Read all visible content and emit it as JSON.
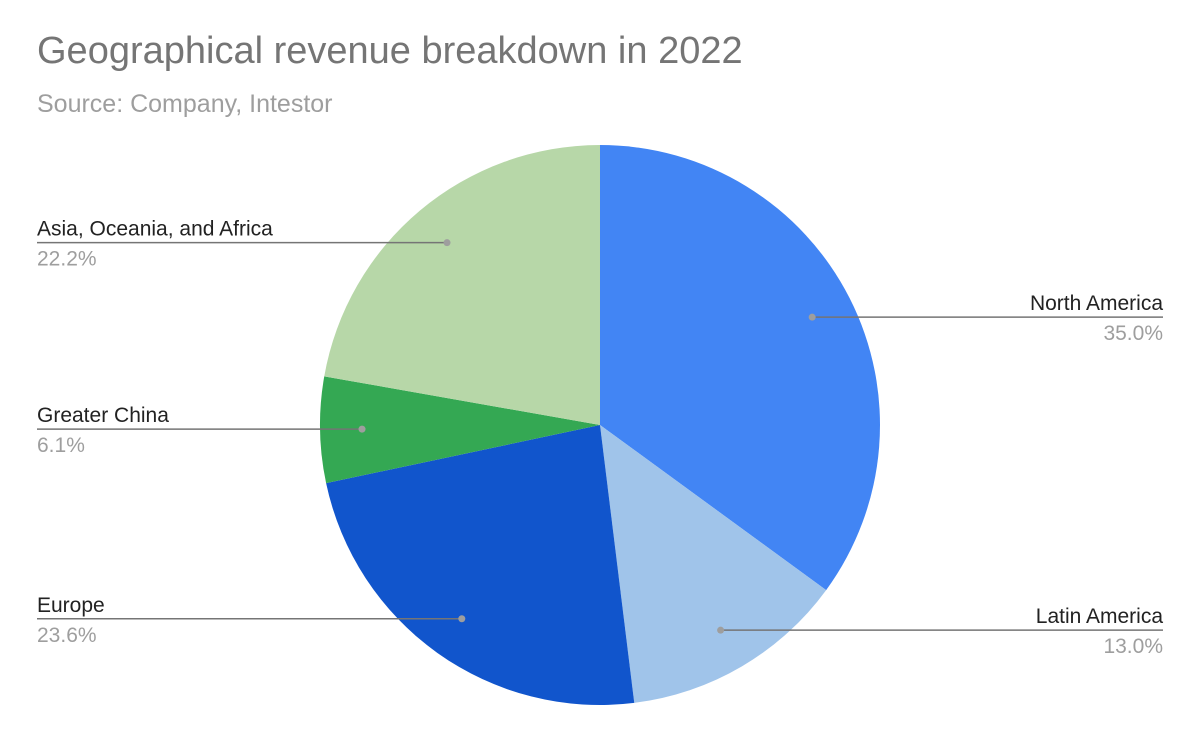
{
  "chart_data": {
    "type": "pie",
    "title": "Geographical revenue breakdown in 2022",
    "subtitle": "Source: Company, Intestor",
    "slices": [
      {
        "label": "North America",
        "value": 35.0,
        "display": "35.0%",
        "color": "#4285F4",
        "side": "right"
      },
      {
        "label": "Latin America",
        "value": 13.0,
        "display": "13.0%",
        "color": "#A0C4EA",
        "side": "right"
      },
      {
        "label": "Europe",
        "value": 23.6,
        "display": "23.6%",
        "color": "#1155CC",
        "side": "left"
      },
      {
        "label": "Greater China",
        "value": 6.1,
        "display": "6.1%",
        "color": "#34A853",
        "side": "left"
      },
      {
        "label": "Asia, Oceania, and Africa",
        "value": 22.2,
        "display": "22.2%",
        "color": "#B7D7A8",
        "side": "left"
      }
    ],
    "start_angle": "12 o'clock",
    "direction": "clockwise",
    "legend": "none (leader-line labels)"
  }
}
